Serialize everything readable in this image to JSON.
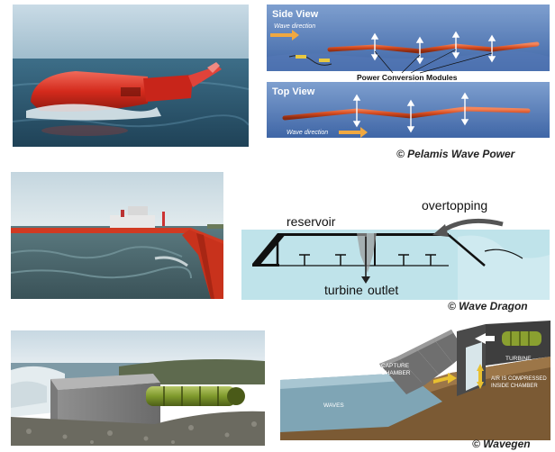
{
  "pelamis": {
    "side_view_label": "Side View",
    "wave_direction_top": "Wave direction",
    "modules_label": "Power Conversion Modules",
    "top_view_label": "Top View",
    "wave_direction_bottom": "Wave direction",
    "caption": "© Pelamis Wave Power"
  },
  "wave_dragon": {
    "reservoir_label": "reservoir",
    "overtopping_label": "overtopping",
    "turbine_label": "turbine",
    "outlet_label": "outlet",
    "caption": "© Wave Dragon"
  },
  "wavegen": {
    "capture_label_1": "CAPTURE",
    "capture_label_2": "CHAMBER",
    "turbine_label": "TURBINE",
    "air_label_1": "AIR IS COMPRESSED",
    "air_label_2": "INSIDE CHAMBER",
    "waves_label": "WAVES",
    "caption": "© Wavegen"
  },
  "colors": {
    "sea": "#3a6f8c",
    "diagram_blue": "#4a78b8",
    "device_red": "#d52a1f",
    "wave_dragon_water": "#bfe3ea"
  }
}
